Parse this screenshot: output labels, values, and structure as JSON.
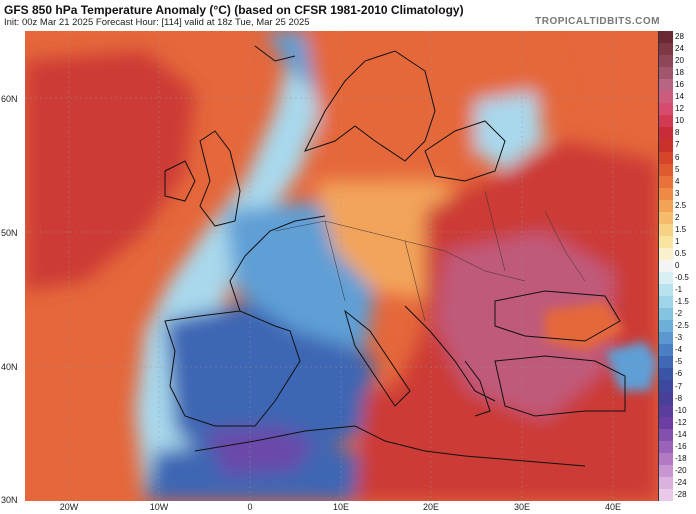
{
  "header": {
    "title": "GFS 850 hPa Temperature Anomaly (°C) (based on CFSR 1981-2010 Climatology)",
    "subtitle": "Init: 00z Mar 21 2025   Forecast Hour: [114]   valid at 18z Tue, Mar 25 2025",
    "brand": "TROPICALTIDBITS.COM"
  },
  "axes": {
    "lat_labels": [
      "60N",
      "50N",
      "40N",
      "30N"
    ],
    "lon_labels": [
      "20W",
      "10W",
      "0",
      "10E",
      "20E",
      "30E",
      "40E"
    ]
  },
  "colorbar": {
    "labels": [
      "28",
      "24",
      "20",
      "18",
      "16",
      "14",
      "12",
      "10",
      "8",
      "7",
      "6",
      "5",
      "4",
      "3",
      "2.5",
      "2",
      "1.5",
      "1",
      "0.5",
      "0",
      "-0.5",
      "-1",
      "-1.5",
      "-2",
      "-2.5",
      "-3",
      "-4",
      "-5",
      "-6",
      "-7",
      "-8",
      "-10",
      "-12",
      "-14",
      "-16",
      "-18",
      "-20",
      "-24",
      "-28"
    ],
    "colors": [
      "#6b2a33",
      "#7e3843",
      "#8e4658",
      "#a2566e",
      "#b96684",
      "#cc5b7e",
      "#d64b6e",
      "#d13a52",
      "#c92b38",
      "#c9322a",
      "#d6442a",
      "#e05a30",
      "#e9713a",
      "#ef8a45",
      "#f3a356",
      "#f6bb6b",
      "#f8d283",
      "#f9e4a0",
      "#fbf1cf",
      "#f4f4f4",
      "#d8eff3",
      "#b8e3ee",
      "#9ed5e8",
      "#84c4e0",
      "#6cb0d8",
      "#5a98cf",
      "#4a7fc3",
      "#3f68b6",
      "#3a55a8",
      "#3d479e",
      "#4a3f98",
      "#5a3d9c",
      "#6c3ea3",
      "#8350ad",
      "#9a62b8",
      "#b479c4",
      "#c995d1",
      "#dbb1de",
      "#e9c9e8"
    ]
  },
  "map": {
    "palette": {
      "warm_strong": "#cc3b34",
      "warm_medium": "#e5673b",
      "warm_light": "#f3a45a",
      "neutral": "#f8e9c4",
      "cool_light": "#a9d8ec",
      "cool_medium": "#5f9fd6",
      "cool_strong": "#3e66b4",
      "magenta": "#c05a7a",
      "purple": "#6a4aa8"
    }
  }
}
